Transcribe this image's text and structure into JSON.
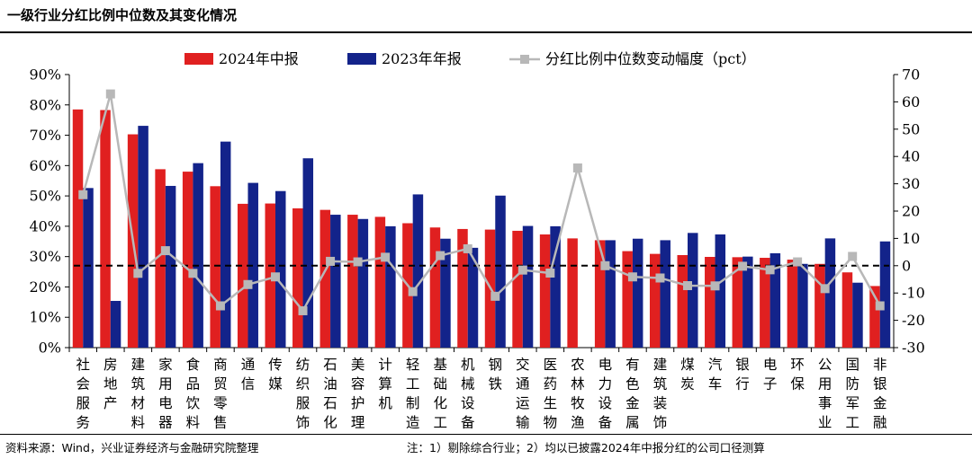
{
  "title": "一级行业分红比例中位数及其变化情况",
  "source": "资料来源：Wind，兴业证券经济与金融研究院整理",
  "note": "注：1）剔除综合行业；2）均以已披露2024年中报分红的公司口径测算",
  "colors": {
    "series1": "#e02020",
    "series2": "#13238a",
    "series3": "#b8b8b8"
  },
  "chart_data": {
    "type": "bar",
    "categories": [
      "社会服务",
      "房地产",
      "建筑材料",
      "家用电器",
      "食品饮料",
      "商贸零售",
      "通信",
      "传媒",
      "纺织服饰",
      "石油石化",
      "美容护理",
      "计算机",
      "轻工制造",
      "基础化工",
      "机械设备",
      "钢铁",
      "交通运输",
      "医药生物",
      "农林牧渔",
      "电力设备",
      "有色金属",
      "建筑装饰",
      "煤炭",
      "汽车",
      "银行",
      "电子",
      "环保",
      "公用事业",
      "国防军工",
      "非银金融"
    ],
    "series": [
      {
        "name": "2024年中报",
        "type": "bar",
        "axis": "left",
        "values": [
          78.5,
          78.3,
          70.3,
          58.8,
          58.0,
          53.2,
          47.4,
          47.5,
          45.9,
          45.4,
          43.8,
          43.1,
          41.0,
          39.6,
          39.1,
          38.9,
          38.5,
          37.3,
          36.0,
          35.4,
          31.8,
          30.9,
          30.5,
          29.9,
          29.8,
          29.6,
          29.0,
          27.6,
          24.8,
          20.3
        ]
      },
      {
        "name": "2023年年报",
        "type": "bar",
        "axis": "left",
        "values": [
          52.6,
          15.4,
          73.1,
          53.3,
          60.8,
          67.9,
          54.3,
          51.6,
          62.4,
          43.8,
          42.4,
          40.0,
          50.5,
          35.9,
          32.9,
          50.1,
          40.1,
          40.0,
          null,
          35.4,
          35.9,
          35.4,
          37.8,
          37.3,
          30.0,
          31.1,
          27.6,
          36.0,
          21.4,
          35.0
        ]
      },
      {
        "name": "分红比例中位数变动幅度（pct）",
        "type": "line",
        "axis": "right",
        "values": [
          26.0,
          62.9,
          -2.8,
          5.5,
          -2.8,
          -14.7,
          -6.9,
          -4.1,
          -16.5,
          1.6,
          1.4,
          3.1,
          -9.5,
          3.7,
          6.2,
          -11.2,
          -1.6,
          -2.7,
          35.8,
          0.0,
          -4.1,
          -4.5,
          -7.3,
          -7.4,
          -0.2,
          -1.5,
          1.4,
          -8.4,
          3.4,
          -14.7
        ]
      }
    ],
    "ylim_left": [
      0,
      90
    ],
    "yticks_left": [
      "0%",
      "10%",
      "20%",
      "30%",
      "40%",
      "50%",
      "60%",
      "70%",
      "80%",
      "90%"
    ],
    "ylim_right": [
      -30,
      70
    ],
    "yticks_right": [
      "-30",
      "-20",
      "-10",
      "0",
      "10",
      "20",
      "30",
      "40",
      "50",
      "60",
      "70"
    ],
    "reference_line": {
      "axis": "right",
      "value": 0,
      "style": "dashed"
    },
    "legend_position": "top-center",
    "grid": false
  }
}
